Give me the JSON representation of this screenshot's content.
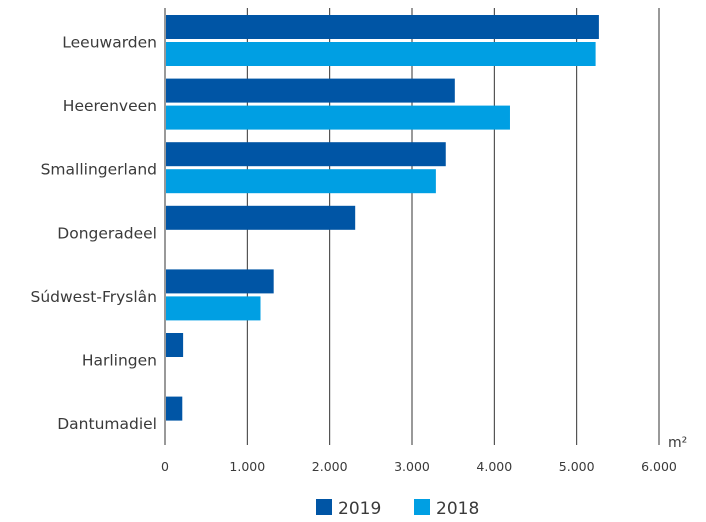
{
  "chart_data": {
    "type": "bar",
    "orientation": "horizontal",
    "categories": [
      "Leeuwarden",
      "Heerenveen",
      "Smallingerland",
      "Dongeradeel",
      "Súdwest-Fryslân",
      "Harlingen",
      "Dantumadiel"
    ],
    "series": [
      {
        "name": "2019",
        "color": "#0055a5",
        "values": [
          5270,
          3520,
          3410,
          2310,
          1320,
          220,
          210
        ]
      },
      {
        "name": "2018",
        "color": "#009fe3",
        "values": [
          5230,
          4190,
          3290,
          null,
          1160,
          null,
          null
        ]
      }
    ],
    "x_ticks": [
      "0",
      "1.000",
      "2.000",
      "3.000",
      "4.000",
      "5.000",
      "6.000"
    ],
    "x_tick_values": [
      0,
      1000,
      2000,
      3000,
      4000,
      5000,
      6000
    ],
    "xlim": [
      0,
      6000
    ],
    "x_unit": "m²",
    "grid": "vertical",
    "legend_position": "bottom-center"
  }
}
